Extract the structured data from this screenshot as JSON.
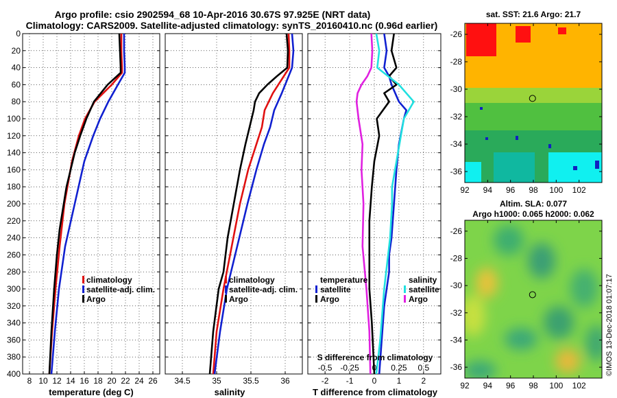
{
  "header": {
    "title_line1": "Argo profile: csio 2902594_68 10-Apr-2016 30.67S 97.925E (NRT data)",
    "title_line2": "Climatology: CARS2009. Satellite-adjusted climatology: synTS_20160410.nc (0.96d earlier)"
  },
  "colors": {
    "climatology": "#e01010",
    "satellite": "#1020d0",
    "argo": "#000000",
    "salinity_satellite": "#20e0e0",
    "salinity_argo": "#e020e0"
  },
  "y_axis": {
    "label_values": [
      0,
      20,
      40,
      60,
      80,
      100,
      120,
      140,
      160,
      180,
      200,
      220,
      240,
      260,
      280,
      300,
      320,
      340,
      360,
      380,
      400
    ],
    "range": [
      0,
      400
    ]
  },
  "chart_data": [
    {
      "type": "line",
      "name": "temperature",
      "xlabel": "temperature (deg C)",
      "ylabel": "depth",
      "xlim": [
        7,
        27
      ],
      "ylim": [
        400,
        0
      ],
      "xticks": [
        8,
        10,
        12,
        14,
        16,
        18,
        20,
        22,
        24,
        26
      ],
      "legend": [
        {
          "label": "climatology",
          "color": "#e01010"
        },
        {
          "label": "satellite-adj. clim.",
          "color": "#1020d0"
        },
        {
          "label": "Argo",
          "color": "#000000"
        }
      ],
      "series": [
        {
          "name": "climatology",
          "color": "#e01010",
          "depth": [
            0,
            20,
            40,
            46,
            60,
            80,
            100,
            120,
            150,
            200,
            250,
            300,
            350,
            400
          ],
          "values": [
            21.4,
            21.4,
            21.5,
            21.5,
            20.0,
            17.5,
            16.1,
            15.2,
            14.2,
            13.1,
            12.4,
            11.8,
            11.3,
            10.9
          ]
        },
        {
          "name": "satellite-adj. clim.",
          "color": "#1020d0",
          "depth": [
            0,
            20,
            40,
            46,
            60,
            80,
            100,
            120,
            150,
            200,
            250,
            300,
            350,
            400
          ],
          "values": [
            21.8,
            21.8,
            21.9,
            21.9,
            20.9,
            19.5,
            18.3,
            17.3,
            16.0,
            14.6,
            13.2,
            12.3,
            11.7,
            11.2
          ]
        },
        {
          "name": "Argo",
          "color": "#000000",
          "depth": [
            0,
            20,
            40,
            46,
            60,
            80,
            100,
            120,
            140,
            160,
            180,
            200,
            230,
            260,
            300,
            350,
            400
          ],
          "values": [
            21.1,
            21.2,
            21.3,
            21.3,
            19.4,
            17.4,
            16.3,
            15.4,
            14.6,
            14.0,
            13.4,
            13.0,
            12.4,
            12.0,
            11.6,
            11.2,
            10.9
          ]
        }
      ]
    },
    {
      "type": "line",
      "name": "salinity",
      "xlabel": "salinity",
      "ylabel": "depth",
      "xlim": [
        34.25,
        36.25
      ],
      "ylim": [
        400,
        0
      ],
      "xticks": [
        34.5,
        35,
        35.5,
        36
      ],
      "legend": [
        {
          "label": "climatology",
          "color": "#e01010"
        },
        {
          "label": "satellite-adj. clim.",
          "color": "#1020d0"
        },
        {
          "label": "Argo",
          "color": "#000000"
        }
      ],
      "series": [
        {
          "name": "climatology",
          "color": "#e01010",
          "depth": [
            0,
            20,
            40,
            50,
            70,
            90,
            110,
            130,
            160,
            200,
            250,
            300,
            350,
            400
          ],
          "values": [
            36.05,
            36.06,
            36.06,
            35.98,
            35.82,
            35.7,
            35.66,
            35.58,
            35.46,
            35.34,
            35.22,
            35.1,
            35.0,
            34.95
          ]
        },
        {
          "name": "satellite-adj. clim.",
          "color": "#1020d0",
          "depth": [
            0,
            20,
            40,
            50,
            70,
            90,
            110,
            130,
            160,
            200,
            250,
            300,
            350,
            400
          ],
          "values": [
            36.1,
            36.12,
            36.1,
            36.05,
            35.95,
            35.84,
            35.78,
            35.69,
            35.58,
            35.45,
            35.3,
            35.15,
            35.05,
            34.97
          ]
        },
        {
          "name": "Argo",
          "color": "#000000",
          "depth": [
            0,
            20,
            40,
            50,
            60,
            70,
            80,
            90,
            110,
            130,
            160,
            200,
            240,
            280,
            300,
            350,
            400
          ],
          "values": [
            36.02,
            36.04,
            36.03,
            35.88,
            35.74,
            35.62,
            35.56,
            35.54,
            35.48,
            35.42,
            35.34,
            35.25,
            35.16,
            35.1,
            35.03,
            34.95,
            34.9
          ]
        }
      ]
    },
    {
      "type": "line",
      "name": "difference_from_climatology",
      "xlabel": "T difference from climatology",
      "ylabel": "depth",
      "xlim": [
        -2.7,
        2.7
      ],
      "ylim": [
        400,
        0
      ],
      "xticks": [
        -2,
        -1,
        0,
        1,
        2
      ],
      "secondary_xlabel": "S difference from climatology",
      "secondary_xticks": [
        "-0.5",
        "-0.25",
        "0",
        "0.25",
        "0.5"
      ],
      "legend_temperature_title": "temperature",
      "legend_salinity_title": "salinity",
      "legend_temperature": [
        {
          "label": "satellite",
          "color": "#1020d0"
        },
        {
          "label": "Argo",
          "color": "#000000"
        }
      ],
      "legend_salinity": [
        {
          "label": "satellite",
          "color": "#20e0e0"
        },
        {
          "label": "Argo",
          "color": "#e020e0"
        }
      ],
      "series": [
        {
          "name": "T satellite",
          "color": "#1020d0",
          "depth": [
            0,
            20,
            40,
            50,
            60,
            80,
            90,
            100,
            130,
            160,
            200,
            240,
            260,
            280,
            320,
            360,
            400
          ],
          "values": [
            0.4,
            0.5,
            0.4,
            0.6,
            0.7,
            1.0,
            1.3,
            1.2,
            1.0,
            0.9,
            0.8,
            0.7,
            0.6,
            0.6,
            0.4,
            0.3,
            0.2
          ]
        },
        {
          "name": "T Argo",
          "color": "#000000",
          "depth": [
            0,
            20,
            40,
            50,
            60,
            70,
            80,
            100,
            120,
            150,
            180,
            220,
            260,
            300,
            340,
            400
          ],
          "values": [
            0.8,
            0.7,
            0.9,
            0.6,
            0.9,
            0.4,
            0.6,
            0.1,
            0.2,
            0.0,
            -0.1,
            -0.2,
            -0.2,
            -0.2,
            -0.1,
            0.0
          ]
        },
        {
          "name": "S satellite",
          "color": "#20e0e0",
          "depth": [
            0,
            20,
            40,
            60,
            80,
            100,
            140,
            180,
            200,
            240,
            300,
            360,
            400
          ],
          "values": [
            0.02,
            0.05,
            0.03,
            0.25,
            0.4,
            0.3,
            0.24,
            0.18,
            0.18,
            0.16,
            0.1,
            0.06,
            0.02
          ]
        },
        {
          "name": "S Argo",
          "color": "#e020e0",
          "depth": [
            0,
            20,
            40,
            50,
            60,
            70,
            80,
            100,
            130,
            160,
            200,
            250,
            300,
            350,
            400
          ],
          "values": [
            -0.03,
            -0.02,
            -0.03,
            -0.07,
            -0.13,
            -0.17,
            -0.18,
            -0.16,
            -0.12,
            -0.13,
            -0.11,
            -0.12,
            -0.08,
            -0.05,
            -0.04
          ]
        }
      ]
    },
    {
      "type": "heatmap",
      "name": "sst_map",
      "title": "sat. SST: 21.6 Argo: 21.7",
      "xticks": [
        92,
        94,
        96,
        98,
        100,
        102
      ],
      "yticks": [
        -26,
        -28,
        -30,
        -32,
        -34,
        -36
      ],
      "xlim": [
        92,
        104
      ],
      "ylim": [
        -36.8,
        -25.2
      ],
      "marker": {
        "lon": 97.925,
        "lat": -30.67
      }
    },
    {
      "type": "heatmap",
      "name": "sla_map",
      "title_line1": "Altim. SLA: 0.077",
      "title_line2": "Argo h1000: 0.065 h2000: 0.062",
      "xticks": [
        92,
        94,
        96,
        98,
        100,
        102
      ],
      "yticks": [
        -26,
        -28,
        -30,
        -32,
        -34,
        -36
      ],
      "xlim": [
        92,
        104
      ],
      "ylim": [
        -36.8,
        -25.2
      ],
      "marker": {
        "lon": 97.925,
        "lat": -30.67
      }
    }
  ],
  "footer": {
    "stamp": "©IMOS 13-Dec-2018 01:07:17"
  }
}
